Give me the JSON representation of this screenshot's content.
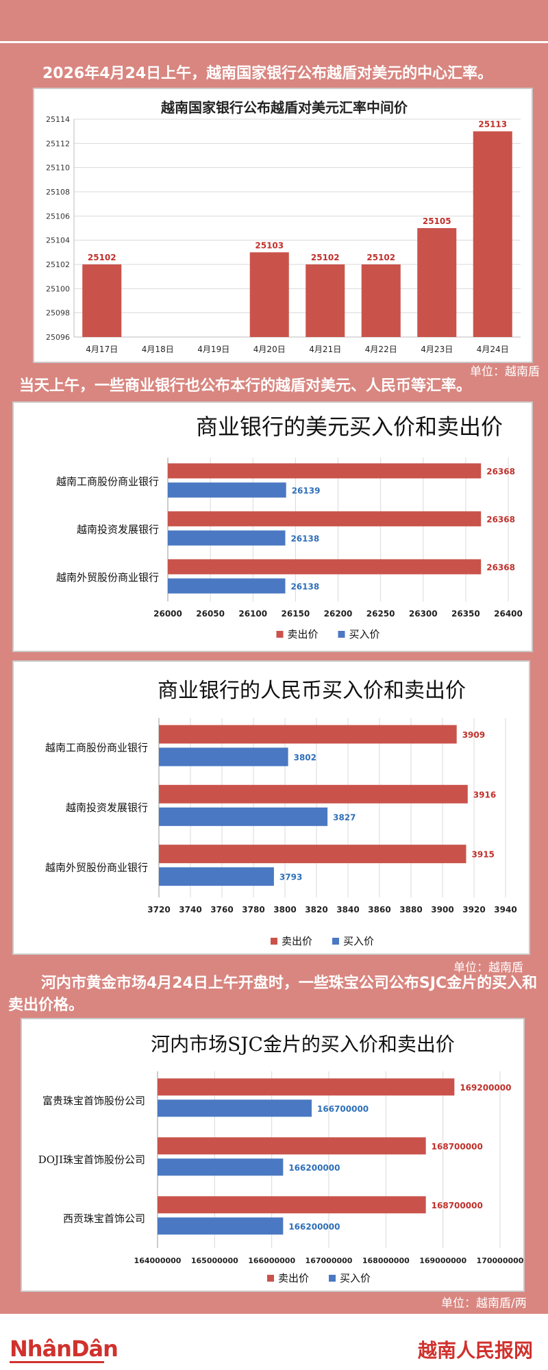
{
  "intro_text": "2026年4月24日上午，越南国家银行公布越盾对美元的中心汇率。",
  "middle_text": "当天上午，一些商业银行也公布本行的越盾对美元、人民币等汇率。",
  "gold_text": "河内市黄金市场4月24日上午开盘时，一些珠宝公司公布SJC金片的买入和卖出价格。",
  "units": {
    "chart1": "单位：越南盾",
    "chart3": "单位：越南盾",
    "chart4": "单位：越南盾/两"
  },
  "footer": {
    "logo_left": "NhânDân",
    "logo_right": "越南人民报网"
  },
  "colors": {
    "sell": "#c9534b",
    "buy": "#4a78c2",
    "bar": "#c9534b",
    "page_bg": "#d98680"
  },
  "chart_data": [
    {
      "type": "bar",
      "title": "越南国家银行公布越盾对美元汇率中间价",
      "categories": [
        "4月17日",
        "4月18日",
        "4月19日",
        "4月20日",
        "4月21日",
        "4月22日",
        "4月23日",
        "4月24日"
      ],
      "values": [
        25102,
        null,
        null,
        25103,
        25102,
        25102,
        25105,
        25113
      ],
      "labels": [
        "25102",
        "",
        "",
        "25103",
        "25102",
        "25102",
        "25105",
        "25113"
      ],
      "ylim": [
        25096,
        25114
      ],
      "yticks": [
        25096,
        25098,
        25100,
        25102,
        25104,
        25106,
        25108,
        25110,
        25112,
        25114
      ],
      "grid": true
    },
    {
      "type": "bar",
      "orientation": "horizontal",
      "title": "商业银行的美元买入价和卖出价",
      "categories": [
        "越南工商股份商业银行",
        "越南投资发展银行",
        "越南外贸股份商业银行"
      ],
      "series": [
        {
          "name": "卖出价",
          "values": [
            26368,
            26368,
            26368
          ]
        },
        {
          "name": "买入价",
          "values": [
            26139,
            26138,
            26138
          ]
        }
      ],
      "xlim": [
        26000,
        26400
      ],
      "xticks": [
        26000,
        26050,
        26100,
        26150,
        26200,
        26250,
        26300,
        26350,
        26400
      ],
      "legend": "bottom",
      "grid": true
    },
    {
      "type": "bar",
      "orientation": "horizontal",
      "title": "商业银行的人民币买入价和卖出价",
      "categories": [
        "越南工商股份商业银行",
        "越南投资发展银行",
        "越南外贸股份商业银行"
      ],
      "series": [
        {
          "name": "卖出价",
          "values": [
            3909,
            3916,
            3915
          ]
        },
        {
          "name": "买入价",
          "values": [
            3802,
            3827,
            3793
          ]
        }
      ],
      "xlim": [
        3720,
        3940
      ],
      "xticks": [
        3720,
        3740,
        3760,
        3780,
        3800,
        3820,
        3840,
        3860,
        3880,
        3900,
        3920,
        3940
      ],
      "legend": "bottom",
      "grid": true
    },
    {
      "type": "bar",
      "orientation": "horizontal",
      "title": "河内市场SJC金片的买入价和卖出价",
      "categories": [
        "富贵珠宝首饰股份公司",
        "DOJI珠宝首饰股份公司",
        "西贡珠宝首饰公司"
      ],
      "series": [
        {
          "name": "卖出价",
          "values": [
            169200000,
            168700000,
            168700000
          ]
        },
        {
          "name": "买入价",
          "values": [
            166700000,
            166200000,
            166200000
          ]
        }
      ],
      "xlim": [
        164000000,
        170000000
      ],
      "xticks": [
        164000000,
        165000000,
        166000000,
        167000000,
        168000000,
        169000000,
        170000000
      ],
      "legend": "bottom",
      "grid": true
    }
  ]
}
